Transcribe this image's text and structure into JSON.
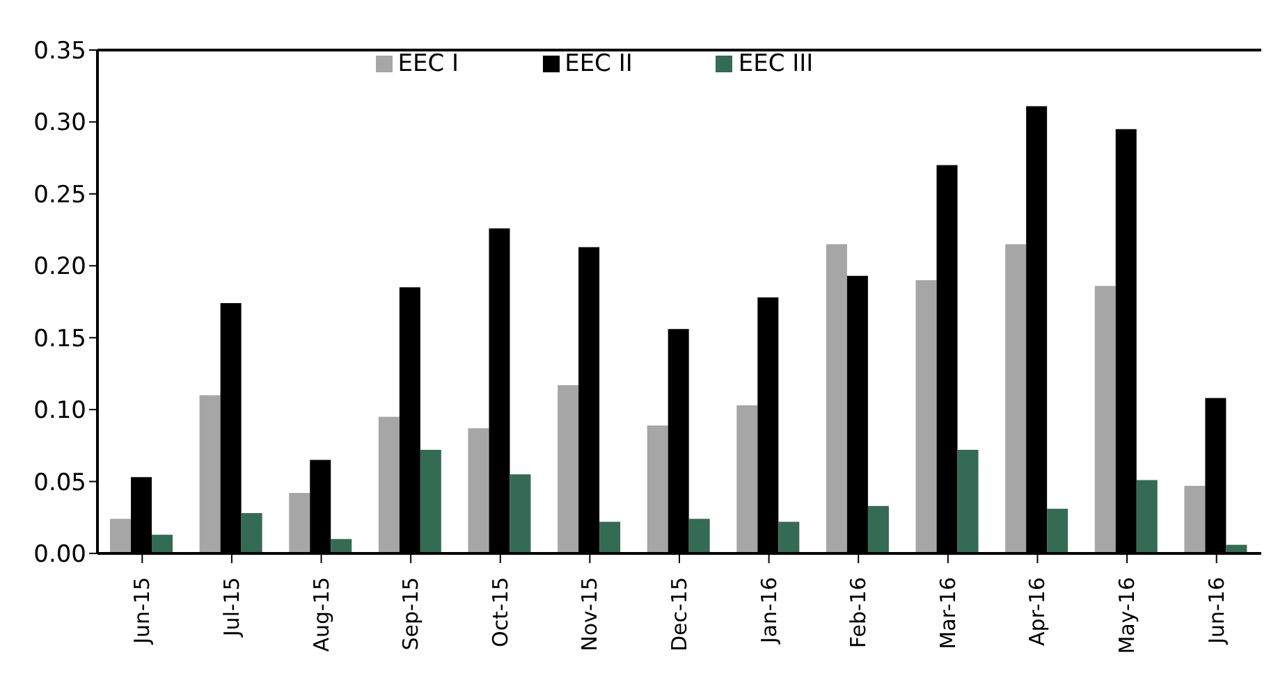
{
  "chart_data": {
    "type": "bar",
    "categories": [
      "Jun-15",
      "Jul-15",
      "Aug-15",
      "Sep-15",
      "Oct-15",
      "Nov-15",
      "Dec-15",
      "Jan-16",
      "Feb-16",
      "Mar-16",
      "Apr-16",
      "May-16",
      "Jun-16"
    ],
    "series": [
      {
        "name": "EEC I",
        "color": "#a6a6a6",
        "values": [
          0.024,
          0.11,
          0.042,
          0.095,
          0.087,
          0.117,
          0.089,
          0.103,
          0.215,
          0.19,
          0.215,
          0.186,
          0.047
        ]
      },
      {
        "name": "EEC II",
        "color": "#000000",
        "values": [
          0.053,
          0.174,
          0.065,
          0.185,
          0.226,
          0.213,
          0.156,
          0.178,
          0.193,
          0.27,
          0.311,
          0.295,
          0.108
        ]
      },
      {
        "name": "EEC III",
        "color": "#346b55",
        "values": [
          0.013,
          0.028,
          0.01,
          0.072,
          0.055,
          0.022,
          0.024,
          0.022,
          0.033,
          0.072,
          0.031,
          0.051,
          0.006
        ]
      }
    ],
    "ylim": [
      0,
      0.35
    ],
    "yticks": [
      {
        "value": 0,
        "label": "0.00"
      },
      {
        "value": 0.05,
        "label": "0.05"
      },
      {
        "value": 0.1,
        "label": "0.10"
      },
      {
        "value": 0.15,
        "label": "0.15"
      },
      {
        "value": 0.2,
        "label": "0.20"
      },
      {
        "value": 0.25,
        "label": "0.25"
      },
      {
        "value": 0.3,
        "label": "0.30"
      },
      {
        "value": 0.35,
        "label": "0.35"
      }
    ],
    "grid": false,
    "legend": "top"
  }
}
